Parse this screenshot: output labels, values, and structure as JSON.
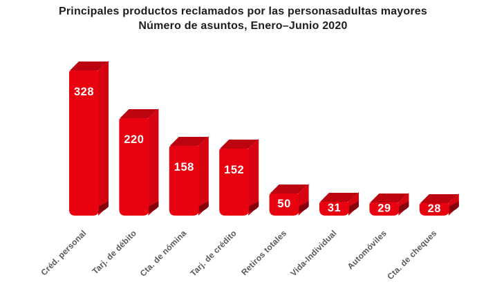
{
  "title": {
    "line1": "Principales productos reclamados por las personasadultas mayores",
    "line2": "Número de asuntos, Enero–Junio 2020"
  },
  "chart_data": {
    "type": "bar",
    "style": "3d",
    "categories": [
      "Créd. personal",
      "Tarj. de débito",
      "Cta. de nómina",
      "Tarj. de crédito",
      "Retiros totales",
      "Vida-Individual",
      "Automóviles",
      "Cta. de cheques"
    ],
    "values": [
      328,
      220,
      158,
      152,
      50,
      31,
      29,
      28
    ],
    "title": "Principales productos reclamados por las personasadultas mayores — Número de asuntos, Enero–Junio 2020",
    "xlabel": "",
    "ylabel": "",
    "ylim": [
      0,
      350
    ],
    "grid": false,
    "legend": false,
    "data_labels": true,
    "colors": {
      "bar_front": "#e8020f",
      "bar_top": "#bc0410",
      "bar_side": "#d60411",
      "bar_shadow": "#85030c",
      "value_label": "#ffffff",
      "axis_label": "#58595b",
      "title_text": "#1d1d1f",
      "background": "#ffffff"
    }
  }
}
